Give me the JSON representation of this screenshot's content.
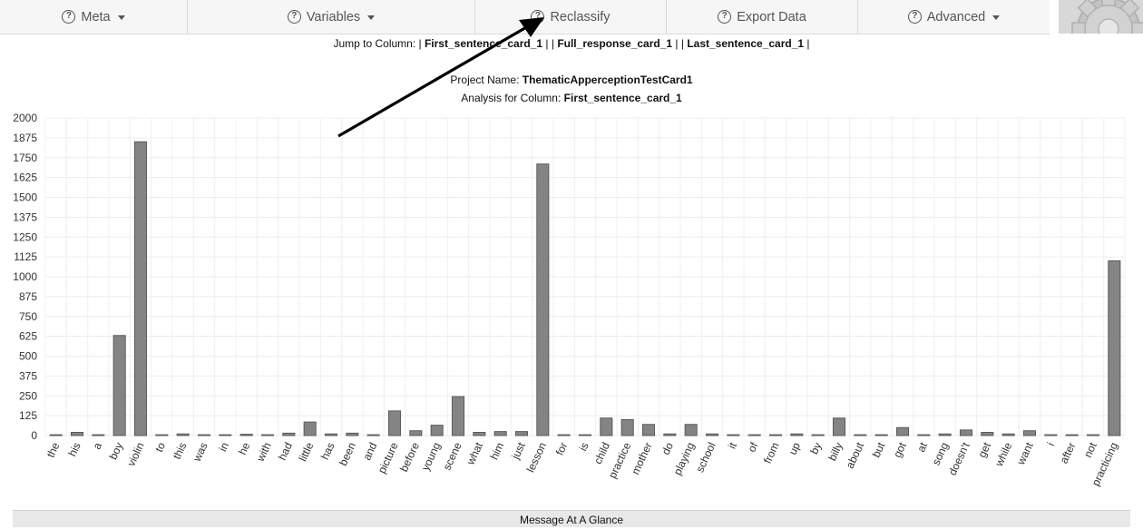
{
  "nav": {
    "items": [
      {
        "label": "Meta",
        "caret": true
      },
      {
        "label": "Variables",
        "caret": true
      },
      {
        "label": "Reclassify",
        "caret": false
      },
      {
        "label": "Export Data",
        "caret": false
      },
      {
        "label": "Advanced",
        "caret": true
      }
    ]
  },
  "jump": {
    "prefix": "Jump to Column:",
    "sep_open": "|",
    "sep_mid": "| |",
    "sep_close": "|",
    "links": [
      "First_sentence_card_1",
      "Full_response_card_1",
      "Last_sentence_card_1"
    ]
  },
  "project": {
    "name_label": "Project Name:",
    "name": "ThematicApperceptionTestCard1",
    "analysis_label": "Analysis for Column:",
    "analysis_column": "First_sentence_card_1"
  },
  "chart_data": {
    "type": "bar",
    "ylim": [
      0,
      2000
    ],
    "yticks": [
      0,
      125,
      250,
      375,
      500,
      625,
      750,
      875,
      1000,
      1125,
      1250,
      1375,
      1500,
      1625,
      1750,
      1875,
      2000
    ],
    "grid": true,
    "bar_color": "#7a7a7a",
    "categories": [
      "the",
      "his",
      "a",
      "boy",
      "violin",
      "to",
      "this",
      "was",
      "in",
      "he",
      "with",
      "had",
      "little",
      "has",
      "been",
      "and",
      "picture",
      "before",
      "young",
      "scene",
      "what",
      "him",
      "just",
      "lesson",
      "for",
      "is",
      "child",
      "practice",
      "mother",
      "do",
      "playing",
      "school",
      "it",
      "of",
      "from",
      "up",
      "by",
      "billy",
      "about",
      "but",
      "got",
      "at",
      "song",
      "doesn't",
      "get",
      "while",
      "want",
      "i",
      "after",
      "not",
      "practicing"
    ],
    "values": [
      5,
      20,
      5,
      630,
      1850,
      5,
      10,
      5,
      5,
      8,
      5,
      15,
      85,
      10,
      15,
      5,
      155,
      30,
      65,
      245,
      20,
      25,
      25,
      1710,
      5,
      5,
      110,
      100,
      70,
      10,
      70,
      10,
      5,
      5,
      5,
      10,
      5,
      110,
      5,
      5,
      50,
      5,
      10,
      35,
      20,
      10,
      30,
      5,
      5,
      5,
      1100
    ]
  },
  "footer": {
    "glance": "Message At A Glance"
  }
}
